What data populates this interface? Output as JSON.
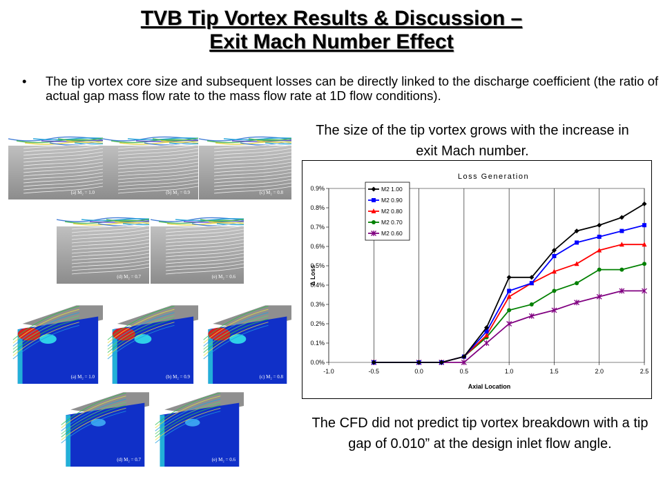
{
  "slide": {
    "title_line1": "TVB Tip Vortex Results & Discussion –",
    "title_line2": "Exit Mach Number Effect",
    "bullet": "The tip vortex core size and subsequent losses can be directly linked to the discharge coefficient (the ratio of actual gap mass flow rate to the mass flow rate at 1D flow conditions).",
    "caption_top": "The size of the tip vortex grows with the increase in exit Mach number.",
    "caption_bottom": "The CFD did not predict tip vortex breakdown with a tip gap of 0.010” at the design inlet flow angle."
  },
  "figures": {
    "streamline_panels": [
      {
        "label": "(a) M₂ = 1.0"
      },
      {
        "label": "(b) M₂ = 0.9"
      },
      {
        "label": "(c) M₂ = 0.8"
      },
      {
        "label": "(d) M₂ = 0.7"
      },
      {
        "label": "(e) M₂ = 0.6"
      }
    ],
    "contour_panels": [
      {
        "label": "(a) M₂ = 1.0"
      },
      {
        "label": "(b) M₂ = 0.9"
      },
      {
        "label": "(c) M₂ = 0.8"
      },
      {
        "label": "(d) M₂ = 0.7"
      },
      {
        "label": "(e) M₂ = 0.6"
      }
    ]
  },
  "chart_data": {
    "type": "line",
    "title": "Loss Generation",
    "xlabel": "Axial Location",
    "ylabel": "Δ Loss",
    "xlim": [
      -1.0,
      2.5
    ],
    "ylim": [
      0.0,
      0.009
    ],
    "x_ticks": [
      "-1.0",
      "-0.5",
      "0.0",
      "0.5",
      "1.0",
      "1.5",
      "2.0",
      "2.5"
    ],
    "y_ticks": [
      "0.0%",
      "0.1%",
      "0.2%",
      "0.3%",
      "0.4%",
      "0.5%",
      "0.6%",
      "0.7%",
      "0.8%",
      "0.9%"
    ],
    "grid": "vertical",
    "legend_position": "top-left",
    "x": [
      -0.5,
      0.0,
      0.25,
      0.5,
      0.75,
      1.0,
      1.25,
      1.5,
      1.75,
      2.0,
      2.25,
      2.5
    ],
    "series": [
      {
        "name": "M2 1.00",
        "color": "#000000",
        "marker": "diamond",
        "values": [
          0.0,
          0.0,
          0.0,
          0.0003,
          0.0018,
          0.0044,
          0.0044,
          0.0058,
          0.0068,
          0.0071,
          0.0075,
          0.0082
        ]
      },
      {
        "name": "M2 0.90",
        "color": "#0000ff",
        "marker": "square",
        "values": [
          0.0,
          0.0,
          0.0,
          0.0003,
          0.0016,
          0.0037,
          0.0041,
          0.0055,
          0.0062,
          0.0065,
          0.0068,
          0.0071
        ]
      },
      {
        "name": "M2 0.80",
        "color": "#ff0000",
        "marker": "triangle",
        "values": [
          0.0,
          0.0,
          0.0,
          0.0003,
          0.0014,
          0.0034,
          0.0041,
          0.0047,
          0.0051,
          0.0058,
          0.0061,
          0.0061
        ]
      },
      {
        "name": "M2 0.70",
        "color": "#008000",
        "marker": "circle",
        "values": [
          0.0,
          0.0,
          0.0,
          0.0003,
          0.0013,
          0.0027,
          0.003,
          0.0037,
          0.0041,
          0.0048,
          0.0048,
          0.0051
        ]
      },
      {
        "name": "M2 0.60",
        "color": "#800080",
        "marker": "star",
        "values": [
          0.0,
          0.0,
          0.0,
          0.0,
          0.001,
          0.002,
          0.0024,
          0.0027,
          0.0031,
          0.0034,
          0.0037,
          0.0037
        ]
      }
    ]
  }
}
